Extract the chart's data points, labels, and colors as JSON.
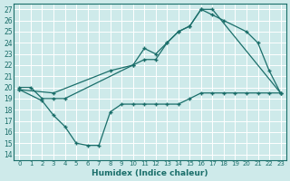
{
  "xlabel": "Humidex (Indice chaleur)",
  "bg_color": "#ceeaea",
  "line_color": "#1a6e6a",
  "grid_color": "#ffffff",
  "xlim": [
    -0.5,
    23.5
  ],
  "ylim": [
    13.5,
    27.5
  ],
  "yticks": [
    14,
    15,
    16,
    17,
    18,
    19,
    20,
    21,
    22,
    23,
    24,
    25,
    26,
    27
  ],
  "xticks": [
    0,
    1,
    2,
    3,
    4,
    5,
    6,
    7,
    8,
    9,
    10,
    11,
    12,
    13,
    14,
    15,
    16,
    17,
    18,
    19,
    20,
    21,
    22,
    23
  ],
  "line1_x": [
    0,
    1,
    2,
    3,
    4,
    10,
    11,
    12,
    13,
    14,
    15,
    16,
    17,
    23
  ],
  "line1_y": [
    20,
    20,
    19,
    19,
    19,
    22,
    23.5,
    23,
    24,
    25,
    25.5,
    27,
    27,
    19.5
  ],
  "line2_x": [
    0,
    2,
    3,
    4,
    5,
    6,
    7,
    8,
    9,
    10,
    11,
    12,
    13,
    14,
    15,
    16,
    17,
    18,
    19,
    20,
    21,
    22,
    23
  ],
  "line2_y": [
    19.8,
    18.8,
    17.5,
    16.5,
    15,
    14.8,
    14.8,
    17.8,
    18.5,
    18.5,
    18.5,
    18.5,
    18.5,
    18.5,
    19,
    19.5,
    19.5,
    19.5,
    19.5,
    19.5,
    19.5,
    19.5,
    19.5
  ],
  "line3_x": [
    0,
    3,
    8,
    10,
    11,
    12,
    13,
    14,
    15,
    16,
    17,
    18,
    20,
    21,
    22,
    23
  ],
  "line3_y": [
    19.8,
    19.5,
    21.5,
    22,
    22.5,
    22.5,
    24,
    25,
    25.5,
    27,
    26.5,
    26,
    25,
    24,
    21.5,
    19.5
  ]
}
